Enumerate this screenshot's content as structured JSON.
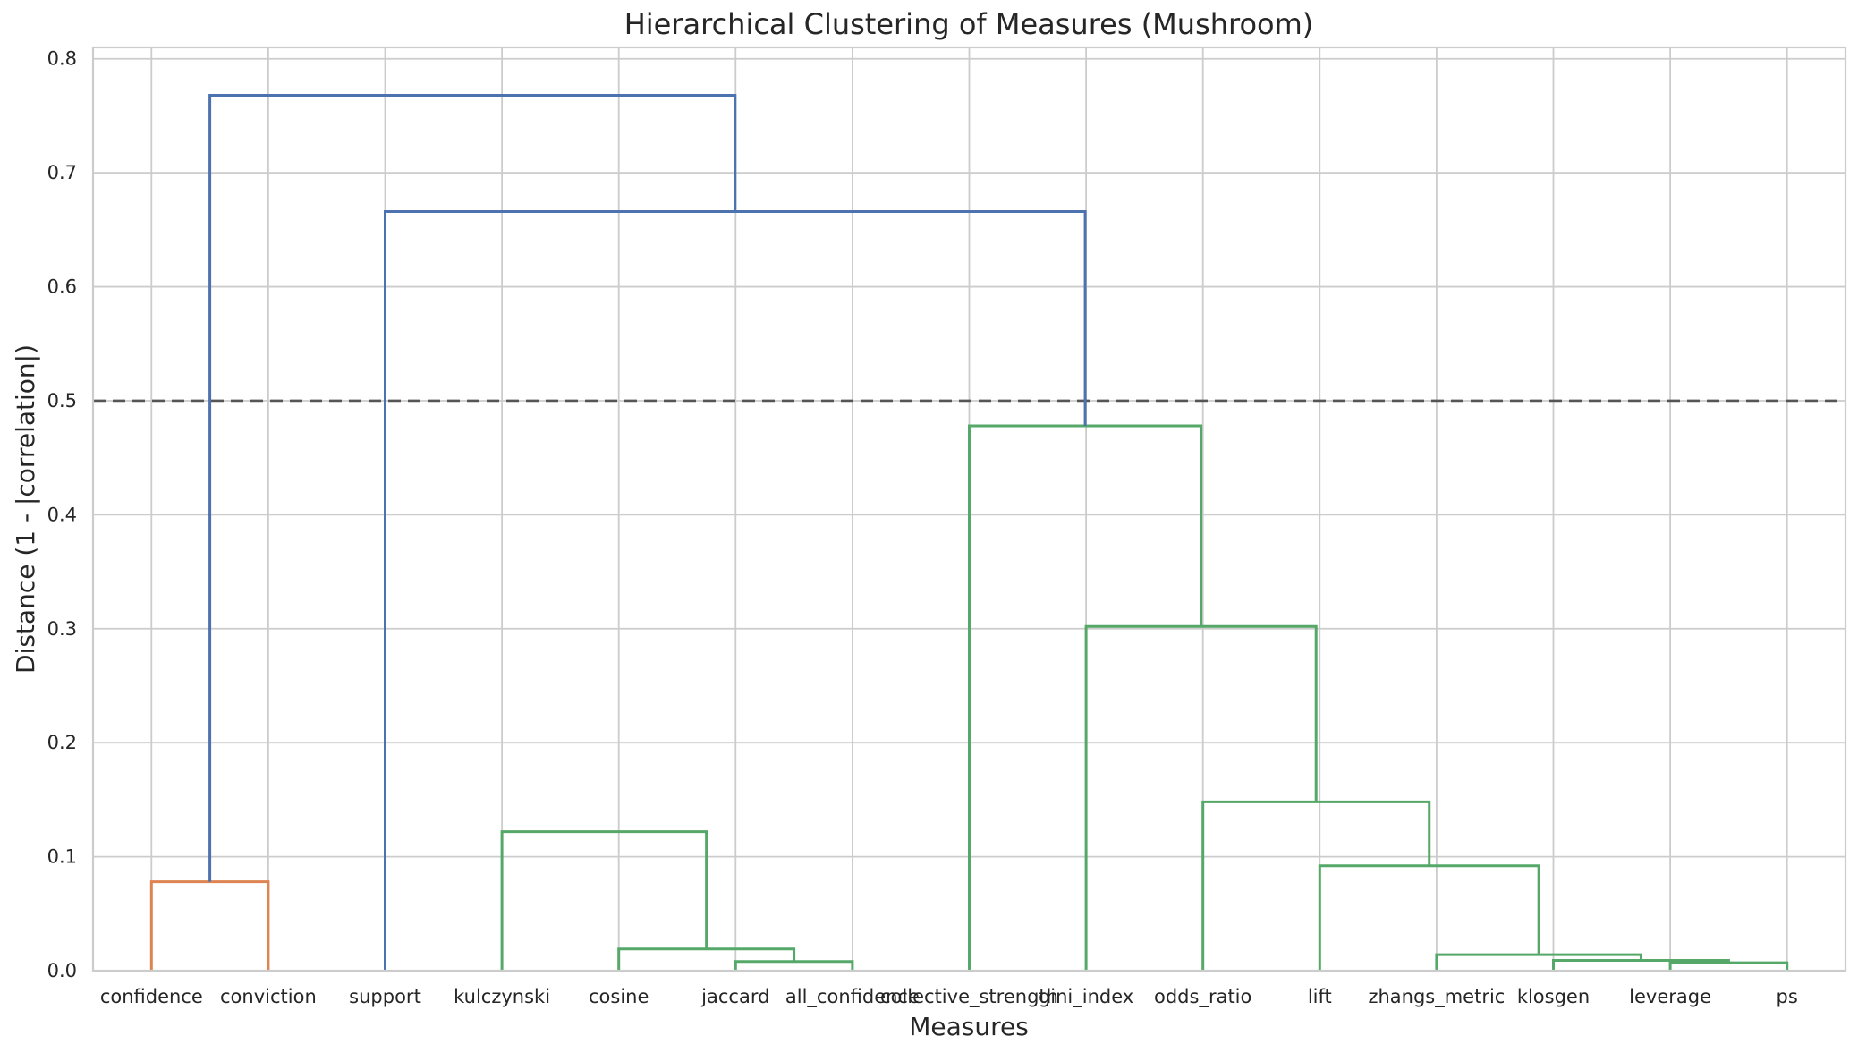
{
  "chart_data": {
    "type": "dendrogram",
    "title": "Hierarchical Clustering of Measures (Mushroom)",
    "xlabel": "Measures",
    "ylabel": "Distance (1 - |correlation|)",
    "ylim": [
      0,
      0.81
    ],
    "yticks": [
      "0.0",
      "0.1",
      "0.2",
      "0.3",
      "0.4",
      "0.5",
      "0.6",
      "0.7",
      "0.8"
    ],
    "grid": true,
    "threshold": 0.5,
    "leaves": [
      "confidence",
      "conviction",
      "support",
      "kulczynski",
      "cosine",
      "jaccard",
      "all_confidence",
      "collective_strength",
      "gini_index",
      "odds_ratio",
      "lift",
      "zhangs_metric",
      "klosgen",
      "leverage",
      "ps"
    ],
    "colors": {
      "orange": "#dd8452",
      "blue": "#4c72b0",
      "green": "#55a868",
      "threshold": "#555555"
    },
    "links": [
      {
        "left": 0,
        "right": 1,
        "height": 0.078,
        "color": "orange"
      },
      {
        "left": 5,
        "right": 6,
        "height": 0.008,
        "color": "green"
      },
      {
        "left": 4,
        "right": "n1",
        "height": 0.019,
        "color": "green"
      },
      {
        "left": 3,
        "right": "n2",
        "height": 0.122,
        "color": "green"
      },
      {
        "left": 13,
        "right": 14,
        "height": 0.007,
        "color": "green"
      },
      {
        "left": 12,
        "right": "n4",
        "height": 0.009,
        "color": "green"
      },
      {
        "left": 11,
        "right": "n5",
        "height": 0.014,
        "color": "green"
      },
      {
        "left": 10,
        "right": "n6",
        "height": 0.092,
        "color": "green"
      },
      {
        "left": 9,
        "right": "n7",
        "height": 0.148,
        "color": "green"
      },
      {
        "left": 8,
        "right": "n8",
        "height": 0.302,
        "color": "green"
      },
      {
        "left": 7,
        "right": "n9",
        "height": 0.478,
        "color": "green"
      },
      {
        "left": 2,
        "right": "n10",
        "height": 0.666,
        "color": "blue"
      },
      {
        "left": "n0",
        "right": "n11",
        "height": 0.768,
        "color": "blue"
      }
    ]
  }
}
